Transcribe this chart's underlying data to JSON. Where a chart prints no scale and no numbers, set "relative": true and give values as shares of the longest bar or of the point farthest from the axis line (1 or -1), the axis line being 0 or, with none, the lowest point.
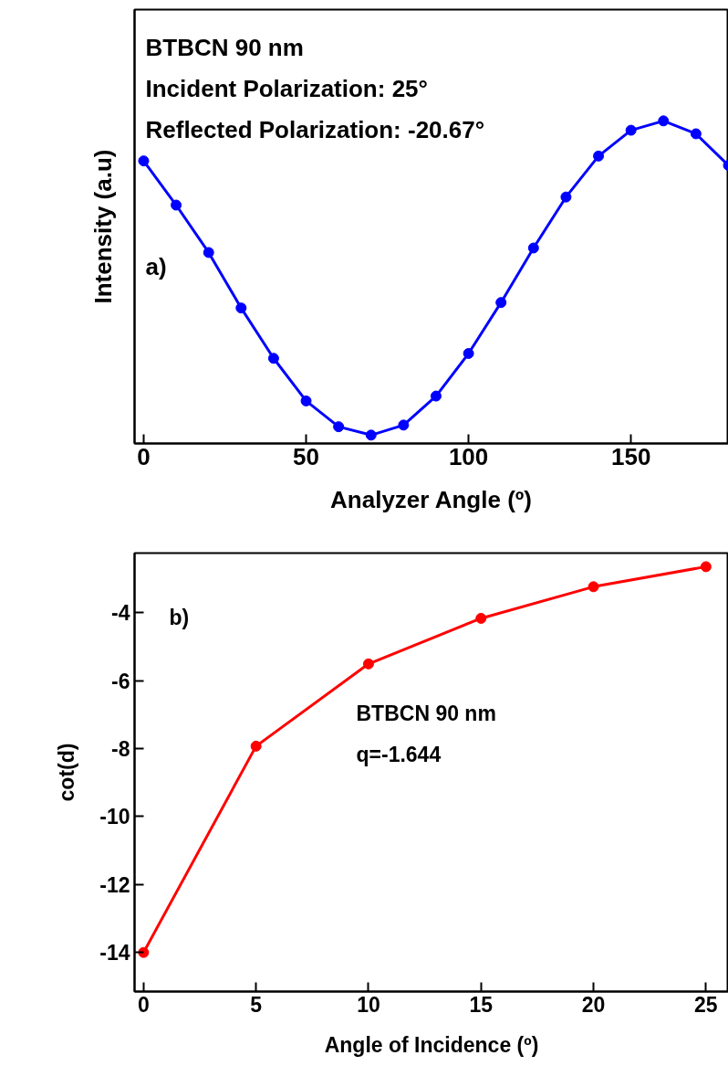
{
  "chart_data": [
    {
      "type": "line",
      "relative": true,
      "ylabel": "Intensity (a.u)",
      "xlabel": "Analyzer Angle (º)",
      "x": [
        0,
        10,
        20,
        30,
        40,
        50,
        60,
        70,
        80,
        90,
        100,
        110,
        120,
        130,
        140,
        150,
        160,
        170,
        180
      ],
      "xlim": [
        -2.8,
        180
      ],
      "xticks": [
        0,
        50,
        100,
        150
      ],
      "series": [
        {
          "color": "#0000ff",
          "values": [
            0.876,
            0.739,
            0.592,
            0.42,
            0.264,
            0.132,
            0.052,
            0.026,
            0.057,
            0.147,
            0.279,
            0.437,
            0.606,
            0.764,
            0.891,
            0.971,
            1.0,
            0.96,
            0.862
          ]
        }
      ],
      "marker": "circle",
      "line_style": "solid",
      "annotations": [
        "BTBCN 90 nm",
        "Incident Polarization: 25°",
        "Reflected Polarization: -20.67°",
        "a)"
      ]
    },
    {
      "type": "line",
      "ylabel": "cot(d)",
      "xlabel": "Angle of Incidence (º)",
      "x": [
        0,
        5,
        10,
        15,
        20,
        25
      ],
      "xlim": [
        -0.4,
        26
      ],
      "xticks": [
        0,
        5,
        10,
        15,
        20,
        25
      ],
      "ylim": [
        -15.15,
        -2.25
      ],
      "yticks": [
        -14,
        -12,
        -10,
        -8,
        -6,
        -4
      ],
      "series": [
        {
          "color": "#ff0000",
          "values": [
            -14.0,
            -7.93,
            -5.51,
            -4.17,
            -3.24,
            -2.65
          ]
        }
      ],
      "marker": "circle",
      "line_style": "solid",
      "annotations": [
        "b)",
        "BTBCN 90 nm",
        "q=-1.644"
      ]
    }
  ]
}
